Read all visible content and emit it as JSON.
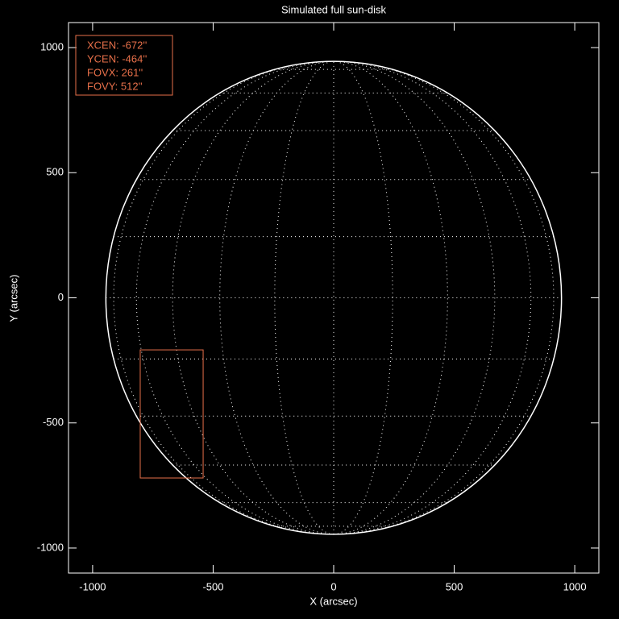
{
  "chart_data": {
    "type": "sun-disk",
    "title": "Simulated full sun-disk",
    "x_label": "X (arcsec)",
    "y_label": "Y (arcsec)",
    "xlim": [
      -1100,
      1100
    ],
    "ylim": [
      -1100,
      1100
    ],
    "xticks": [
      -1000,
      -500,
      0,
      500,
      1000
    ],
    "yticks": [
      -1000,
      -500,
      0,
      500,
      1000
    ],
    "disk": {
      "radius": 945,
      "grid_step": 15,
      "color": "#ffffff"
    },
    "fov": {
      "labels": [
        "XCEN:  -672''",
        "YCEN:  -464''",
        "FOVX:  261''",
        "FOVY:  512''"
      ],
      "xcen": -672,
      "ycen": -464,
      "fovx": 261,
      "fovy": 512,
      "color": "#e8704a"
    }
  }
}
